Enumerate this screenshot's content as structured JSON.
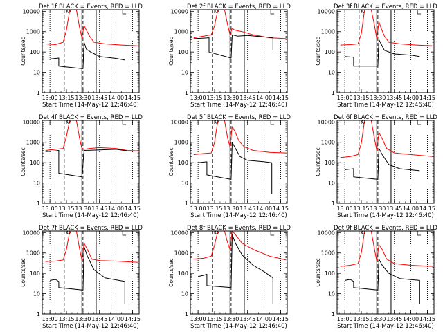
{
  "figure": {
    "background": "#ffffff",
    "axis_color": "#000000",
    "events_color": "#000000",
    "lld_color": "#ff0000"
  },
  "chart_data": [
    {
      "type": "line",
      "title": "Det 1f BLACK = Events, RED = LLD",
      "xlabel": "Start Time (14-May-12 12:46:40)",
      "ylabel": "Counts/sec",
      "yscale": "log",
      "ylim": [
        1,
        12000
      ],
      "xlim": [
        "12:53",
        "14:21"
      ],
      "x_ticks": [
        "13:00",
        "13:15",
        "13:30",
        "13:45",
        "14:00",
        "14:15"
      ],
      "y_ticks": [
        "1",
        "10",
        "100",
        "1000",
        "10000"
      ],
      "vertical_markers": {
        "dotted": [
          "13:00",
          "13:45",
          "14:00",
          "14:15"
        ],
        "dashed": [
          "13:13",
          "13:30"
        ],
        "solid": [
          "13:29",
          "13:42"
        ]
      },
      "series": [
        {
          "color": "#ff0000",
          "x": [
            "12:56",
            "13:05",
            "13:12",
            "13:15",
            "13:18",
            "13:21",
            "13:24",
            "13:27",
            "13:29",
            "13:31",
            "13:33",
            "13:36",
            "13:40",
            "13:50",
            "14:05",
            "14:20"
          ],
          "y": [
            250,
            230,
            300,
            1200,
            14000,
            14000,
            12000,
            1500,
            500,
            2000,
            1200,
            600,
            300,
            250,
            220,
            200
          ]
        },
        {
          "color": "#000000",
          "x": [
            "13:00",
            "13:05",
            "13:08",
            "13:08",
            "13:30",
            "13:31",
            "13:33",
            "13:37",
            "13:45",
            "14:00",
            "14:08"
          ],
          "y": [
            45,
            48,
            50,
            20,
            15,
            300,
            140,
            100,
            60,
            48,
            40
          ]
        }
      ]
    },
    {
      "type": "line",
      "title": "Det 2f BLACK = Events, RED = LLD",
      "xlabel": "Start Time (14-May-12 12:46:40)",
      "ylabel": "Counts/sec",
      "yscale": "log",
      "ylim": [
        1,
        12000
      ],
      "xlim": [
        "12:53",
        "14:21"
      ],
      "x_ticks": [
        "13:00",
        "13:15",
        "13:30",
        "13:45",
        "14:00",
        "14:15"
      ],
      "y_ticks": [
        "1",
        "10",
        "100",
        "1000",
        "10000"
      ],
      "vertical_markers": {
        "dotted": [
          "13:00",
          "13:45",
          "14:00",
          "14:15"
        ],
        "dashed": [
          "13:13",
          "13:30"
        ],
        "solid": [
          "13:29",
          "13:42"
        ]
      },
      "series": [
        {
          "color": "#ff0000",
          "x": [
            "12:56",
            "13:05",
            "13:12",
            "13:15",
            "13:18",
            "13:21",
            "13:24",
            "13:27",
            "13:29",
            "13:31",
            "13:33",
            "13:36",
            "13:40",
            "13:50",
            "14:05",
            "14:20"
          ],
          "y": [
            500,
            600,
            700,
            2000,
            14000,
            14000,
            12000,
            2000,
            700,
            1500,
            1200,
            1100,
            1000,
            700,
            500,
            450
          ]
        },
        {
          "color": "#000000",
          "x": [
            "12:56",
            "13:05",
            "13:10",
            "13:10",
            "13:30",
            "13:31",
            "13:36",
            "13:45",
            "14:00",
            "14:08",
            "14:08"
          ],
          "y": [
            450,
            480,
            500,
            100,
            50,
            700,
            600,
            650,
            550,
            500,
            120
          ]
        }
      ]
    },
    {
      "type": "line",
      "title": "Det 3f BLACK = Events, RED = LLD",
      "xlabel": "Start Time (14-May-12 12:46:40)",
      "ylabel": "Counts/sec",
      "yscale": "log",
      "ylim": [
        1,
        12000
      ],
      "xlim": [
        "12:53",
        "14:21"
      ],
      "x_ticks": [
        "13:00",
        "13:15",
        "13:30",
        "13:45",
        "14:00",
        "14:15"
      ],
      "y_ticks": [
        "1",
        "10",
        "100",
        "1000",
        "10000"
      ],
      "vertical_markers": {
        "dotted": [
          "13:00",
          "13:45",
          "14:00",
          "14:15"
        ],
        "dashed": [
          "13:13",
          "13:30"
        ],
        "solid": [
          "13:29",
          "13:42"
        ]
      },
      "series": [
        {
          "color": "#ff0000",
          "x": [
            "12:56",
            "13:05",
            "13:12",
            "13:15",
            "13:18",
            "13:21",
            "13:24",
            "13:27",
            "13:29",
            "13:31",
            "13:33",
            "13:36",
            "13:40",
            "13:50",
            "14:05",
            "14:20"
          ],
          "y": [
            220,
            230,
            250,
            800,
            14000,
            14000,
            12000,
            2000,
            450,
            3000,
            1500,
            600,
            300,
            250,
            220,
            200
          ]
        },
        {
          "color": "#000000",
          "x": [
            "13:00",
            "13:08",
            "13:08",
            "13:30",
            "13:31",
            "13:33",
            "13:36",
            "13:45",
            "14:00",
            "14:08"
          ],
          "y": [
            60,
            55,
            20,
            20,
            400,
            250,
            120,
            80,
            70,
            60
          ]
        }
      ]
    },
    {
      "type": "line",
      "title": "Det 4f BLACK = Events, RED = LLD",
      "xlabel": "Start Time (14-May-12 12:46:40)",
      "ylabel": "Counts/sec",
      "yscale": "log",
      "ylim": [
        1,
        12000
      ],
      "xlim": [
        "12:53",
        "14:21"
      ],
      "x_ticks": [
        "13:00",
        "13:15",
        "13:30",
        "13:45",
        "14:00",
        "14:15"
      ],
      "y_ticks": [
        "1",
        "10",
        "100",
        "1000",
        "10000"
      ],
      "vertical_markers": {
        "dotted": [
          "13:00",
          "13:45",
          "14:00",
          "14:15"
        ],
        "dashed": [
          "13:13",
          "13:30"
        ],
        "solid": [
          "13:29",
          "13:42"
        ]
      },
      "series": [
        {
          "color": "#ff0000",
          "x": [
            "12:56",
            "13:05",
            "13:12",
            "13:15",
            "13:18",
            "13:21",
            "13:24",
            "13:27",
            "13:29",
            "13:31",
            "13:36",
            "13:45",
            "14:00",
            "14:10",
            "14:20"
          ],
          "y": [
            400,
            450,
            500,
            2000,
            14000,
            14000,
            12000,
            1500,
            500,
            450,
            500,
            550,
            500,
            400,
            380
          ]
        },
        {
          "color": "#000000",
          "x": [
            "12:56",
            "13:05",
            "13:08",
            "13:08",
            "13:29",
            "13:31",
            "13:45",
            "14:00",
            "14:10",
            "14:10"
          ],
          "y": [
            350,
            380,
            400,
            30,
            20,
            400,
            420,
            450,
            380,
            3
          ]
        }
      ]
    },
    {
      "type": "line",
      "title": "Det 5f BLACK = Events, RED = LLD",
      "xlabel": "Start Time (14-May-12 12:46:40)",
      "ylabel": "Counts/sec",
      "yscale": "log",
      "ylim": [
        1,
        12000
      ],
      "xlim": [
        "12:53",
        "14:21"
      ],
      "x_ticks": [
        "13:00",
        "13:15",
        "13:30",
        "13:45",
        "14:00",
        "14:15"
      ],
      "y_ticks": [
        "1",
        "10",
        "100",
        "1000",
        "10000"
      ],
      "vertical_markers": {
        "dotted": [
          "13:00",
          "13:45",
          "14:00",
          "14:15"
        ],
        "dashed": [
          "13:13",
          "13:30"
        ],
        "solid": [
          "13:29",
          "13:42"
        ]
      },
      "series": [
        {
          "color": "#ff0000",
          "x": [
            "12:56",
            "13:05",
            "13:12",
            "13:15",
            "13:18",
            "13:21",
            "13:24",
            "13:27",
            "13:29",
            "13:31",
            "13:34",
            "13:37",
            "13:42",
            "13:50",
            "14:05",
            "14:20"
          ],
          "y": [
            250,
            280,
            300,
            1000,
            14000,
            14000,
            12000,
            1500,
            600,
            6000,
            3000,
            1200,
            600,
            400,
            320,
            300
          ]
        },
        {
          "color": "#000000",
          "x": [
            "13:00",
            "13:08",
            "13:08",
            "13:30",
            "13:31",
            "13:34",
            "13:38",
            "13:45",
            "14:00",
            "14:07",
            "14:07"
          ],
          "y": [
            100,
            110,
            25,
            15,
            1000,
            500,
            200,
            130,
            110,
            100,
            3
          ]
        }
      ]
    },
    {
      "type": "line",
      "title": "Det 6f BLACK = Events, RED = LLD",
      "xlabel": "Start Time (14-May-12 12:46:40)",
      "ylabel": "Counts/sec",
      "yscale": "log",
      "ylim": [
        1,
        12000
      ],
      "xlim": [
        "12:53",
        "14:21"
      ],
      "x_ticks": [
        "13:00",
        "13:15",
        "13:30",
        "13:45",
        "14:00",
        "14:15"
      ],
      "y_ticks": [
        "1",
        "10",
        "100",
        "1000",
        "10000"
      ],
      "vertical_markers": {
        "dotted": [
          "13:00",
          "13:45",
          "14:00",
          "14:15"
        ],
        "dashed": [
          "13:13",
          "13:30"
        ],
        "solid": [
          "13:29",
          "13:42"
        ]
      },
      "series": [
        {
          "color": "#ff0000",
          "x": [
            "12:56",
            "13:05",
            "13:12",
            "13:15",
            "13:18",
            "13:21",
            "13:24",
            "13:27",
            "13:29",
            "13:31",
            "13:34",
            "13:38",
            "13:45",
            "14:00",
            "14:20"
          ],
          "y": [
            180,
            200,
            250,
            900,
            14000,
            14000,
            12000,
            1500,
            400,
            3000,
            1500,
            500,
            300,
            250,
            200
          ]
        },
        {
          "color": "#000000",
          "x": [
            "13:00",
            "13:05",
            "13:08",
            "13:08",
            "13:30",
            "13:31",
            "13:34",
            "13:40",
            "13:50",
            "14:08"
          ],
          "y": [
            45,
            48,
            50,
            20,
            15,
            500,
            250,
            80,
            50,
            40
          ]
        }
      ]
    },
    {
      "type": "line",
      "title": "Det 7f BLACK = Events, RED = LLD",
      "xlabel": "Start Time (14-May-12 12:46:40)",
      "ylabel": "Counts/sec",
      "yscale": "log",
      "ylim": [
        1,
        12000
      ],
      "xlim": [
        "12:53",
        "14:21"
      ],
      "x_ticks": [
        "13:00",
        "13:15",
        "13:30",
        "13:45",
        "14:00",
        "14:15"
      ],
      "y_ticks": [
        "1",
        "10",
        "100",
        "1000",
        "10000"
      ],
      "vertical_markers": {
        "dotted": [
          "13:00",
          "13:45",
          "14:00",
          "14:15"
        ],
        "dashed": [
          "13:13",
          "13:30"
        ],
        "solid": [
          "13:29",
          "13:42"
        ]
      },
      "series": [
        {
          "color": "#ff0000",
          "x": [
            "12:56",
            "13:05",
            "13:12",
            "13:15",
            "13:18",
            "13:21",
            "13:24",
            "13:27",
            "13:29",
            "13:31",
            "13:34",
            "13:38",
            "13:45",
            "14:00",
            "14:20"
          ],
          "y": [
            380,
            400,
            450,
            1500,
            14000,
            14000,
            12000,
            1500,
            450,
            3000,
            1500,
            500,
            420,
            400,
            350
          ]
        },
        {
          "color": "#000000",
          "x": [
            "13:00",
            "13:05",
            "13:08",
            "13:08",
            "13:30",
            "13:31",
            "13:34",
            "13:40",
            "13:50",
            "14:08",
            "14:08"
          ],
          "y": [
            45,
            50,
            40,
            20,
            15,
            2000,
            700,
            150,
            60,
            40,
            3
          ]
        }
      ]
    },
    {
      "type": "line",
      "title": "Det 8f BLACK = Events, RED = LLD",
      "xlabel": "Start Time (14-May-12 12:46:40)",
      "ylabel": "Counts/sec",
      "yscale": "log",
      "ylim": [
        1,
        12000
      ],
      "xlim": [
        "12:53",
        "14:21"
      ],
      "x_ticks": [
        "13:00",
        "13:15",
        "13:30",
        "13:45",
        "14:00",
        "14:15"
      ],
      "y_ticks": [
        "1",
        "10",
        "100",
        "1000",
        "10000"
      ],
      "vertical_markers": {
        "dotted": [
          "13:00",
          "13:45",
          "14:00",
          "14:15"
        ],
        "dashed": [
          "13:13",
          "13:30"
        ],
        "solid": [
          "13:29",
          "13:42"
        ]
      },
      "series": [
        {
          "color": "#ff0000",
          "x": [
            "12:56",
            "13:05",
            "13:12",
            "13:15",
            "13:18",
            "13:21",
            "13:24",
            "13:27",
            "13:29",
            "13:31",
            "13:34",
            "13:40",
            "13:50",
            "14:05",
            "14:20"
          ],
          "y": [
            500,
            550,
            700,
            2500,
            14000,
            14000,
            12000,
            3000,
            1500,
            12000,
            8000,
            3000,
            1500,
            700,
            450
          ]
        },
        {
          "color": "#000000",
          "x": [
            "13:00",
            "13:05",
            "13:08",
            "13:08",
            "13:30",
            "13:31",
            "13:34",
            "13:40",
            "13:50",
            "14:00",
            "14:08",
            "14:08"
          ],
          "y": [
            70,
            80,
            90,
            25,
            20,
            8000,
            3000,
            800,
            250,
            120,
            60,
            3
          ]
        }
      ]
    },
    {
      "type": "line",
      "title": "Det 9f BLACK = Events, RED = LLD",
      "xlabel": "Start Time (14-May-12 12:46:40)",
      "ylabel": "Counts/sec",
      "yscale": "log",
      "ylim": [
        1,
        12000
      ],
      "xlim": [
        "12:53",
        "14:21"
      ],
      "x_ticks": [
        "13:00",
        "13:15",
        "13:30",
        "13:45",
        "14:00",
        "14:15"
      ],
      "y_ticks": [
        "1",
        "10",
        "100",
        "1000",
        "10000"
      ],
      "vertical_markers": {
        "dotted": [
          "13:00",
          "13:45",
          "14:00",
          "14:15"
        ],
        "dashed": [
          "13:13",
          "13:30"
        ],
        "solid": [
          "13:29",
          "13:42"
        ]
      },
      "series": [
        {
          "color": "#ff0000",
          "x": [
            "12:56",
            "13:05",
            "13:12",
            "13:15",
            "13:18",
            "13:21",
            "13:24",
            "13:27",
            "13:29",
            "13:31",
            "13:34",
            "13:38",
            "13:45",
            "14:00",
            "14:20"
          ],
          "y": [
            220,
            250,
            300,
            1000,
            14000,
            14000,
            12000,
            1500,
            400,
            2500,
            1500,
            500,
            300,
            250,
            220
          ]
        },
        {
          "color": "#000000",
          "x": [
            "13:00",
            "13:05",
            "13:08",
            "13:08",
            "13:30",
            "13:31",
            "13:34",
            "13:40",
            "13:50",
            "14:08",
            "14:08"
          ],
          "y": [
            45,
            50,
            40,
            20,
            15,
            500,
            250,
            100,
            55,
            45,
            3
          ]
        }
      ]
    }
  ]
}
